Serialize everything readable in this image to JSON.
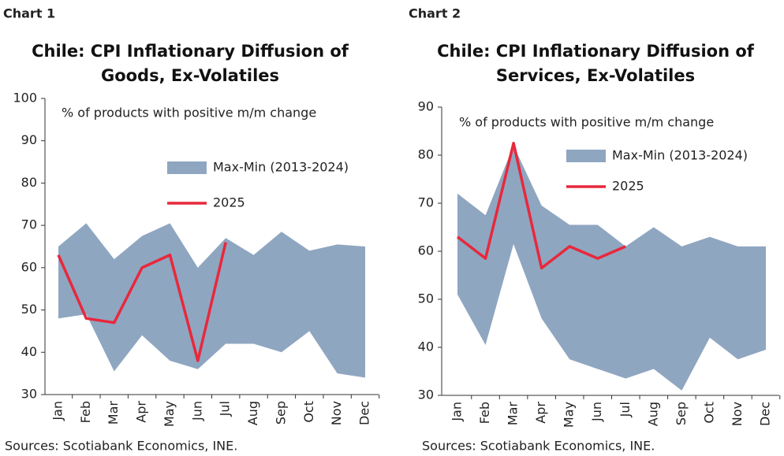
{
  "chart_data": [
    {
      "type": "band-line",
      "label": "Chart 1",
      "title": "Chile: CPI Inflationary Diffusion of Goods, Ex-Volatiles",
      "annotation": "% of products with positive m/m change",
      "source": "Sources: Scotiabank Economics, INE.",
      "categories": [
        "Jan",
        "Feb",
        "Mar",
        "Apr",
        "May",
        "Jun",
        "Jul",
        "Aug",
        "Sep",
        "Oct",
        "Nov",
        "Dec"
      ],
      "ylim": [
        30,
        100
      ],
      "yticks": [
        30,
        40,
        50,
        60,
        70,
        80,
        90,
        100
      ],
      "series": [
        {
          "name": "Max-Min (2013-2024)",
          "color": "#8fa6c1",
          "values": [
            65,
            70.5,
            62,
            67.5,
            70.5,
            60,
            67,
            63,
            68.5,
            64,
            65.5,
            65
          ],
          "lower": [
            48,
            49,
            35.5,
            44,
            38,
            36,
            42,
            42,
            40,
            45,
            35,
            34
          ]
        },
        {
          "name": "2025",
          "color": "#e8283c",
          "values": [
            63,
            48,
            47,
            60,
            63,
            38,
            66,
            null,
            null,
            null,
            null,
            null
          ]
        }
      ]
    },
    {
      "type": "band-line",
      "label": "Chart 2",
      "title": "Chile: CPI Inflationary Diffusion of Services, Ex-Volatiles",
      "annotation": "% of products with positive m/m change",
      "source": "Sources: Scotiabank Economics, INE.",
      "categories": [
        "Jan",
        "Feb",
        "Mar",
        "Apr",
        "May",
        "Jun",
        "Jul",
        "Aug",
        "Sep",
        "Oct",
        "Nov",
        "Dec"
      ],
      "ylim": [
        30,
        90
      ],
      "yticks": [
        30,
        40,
        50,
        60,
        70,
        80,
        90
      ],
      "series": [
        {
          "name": "Max-Min (2013-2024)",
          "color": "#8fa6c1",
          "values": [
            72,
            67.5,
            82,
            69.5,
            65.5,
            65.5,
            61,
            65,
            61,
            63,
            61,
            61
          ],
          "lower": [
            51,
            40.5,
            61.5,
            46,
            37.5,
            35.5,
            33.5,
            35.5,
            31,
            42,
            37.5,
            39.5
          ]
        },
        {
          "name": "2025",
          "color": "#e8283c",
          "values": [
            63,
            58.5,
            82.5,
            56.5,
            61,
            58.5,
            61,
            null,
            null,
            null,
            null,
            null
          ]
        }
      ]
    }
  ]
}
